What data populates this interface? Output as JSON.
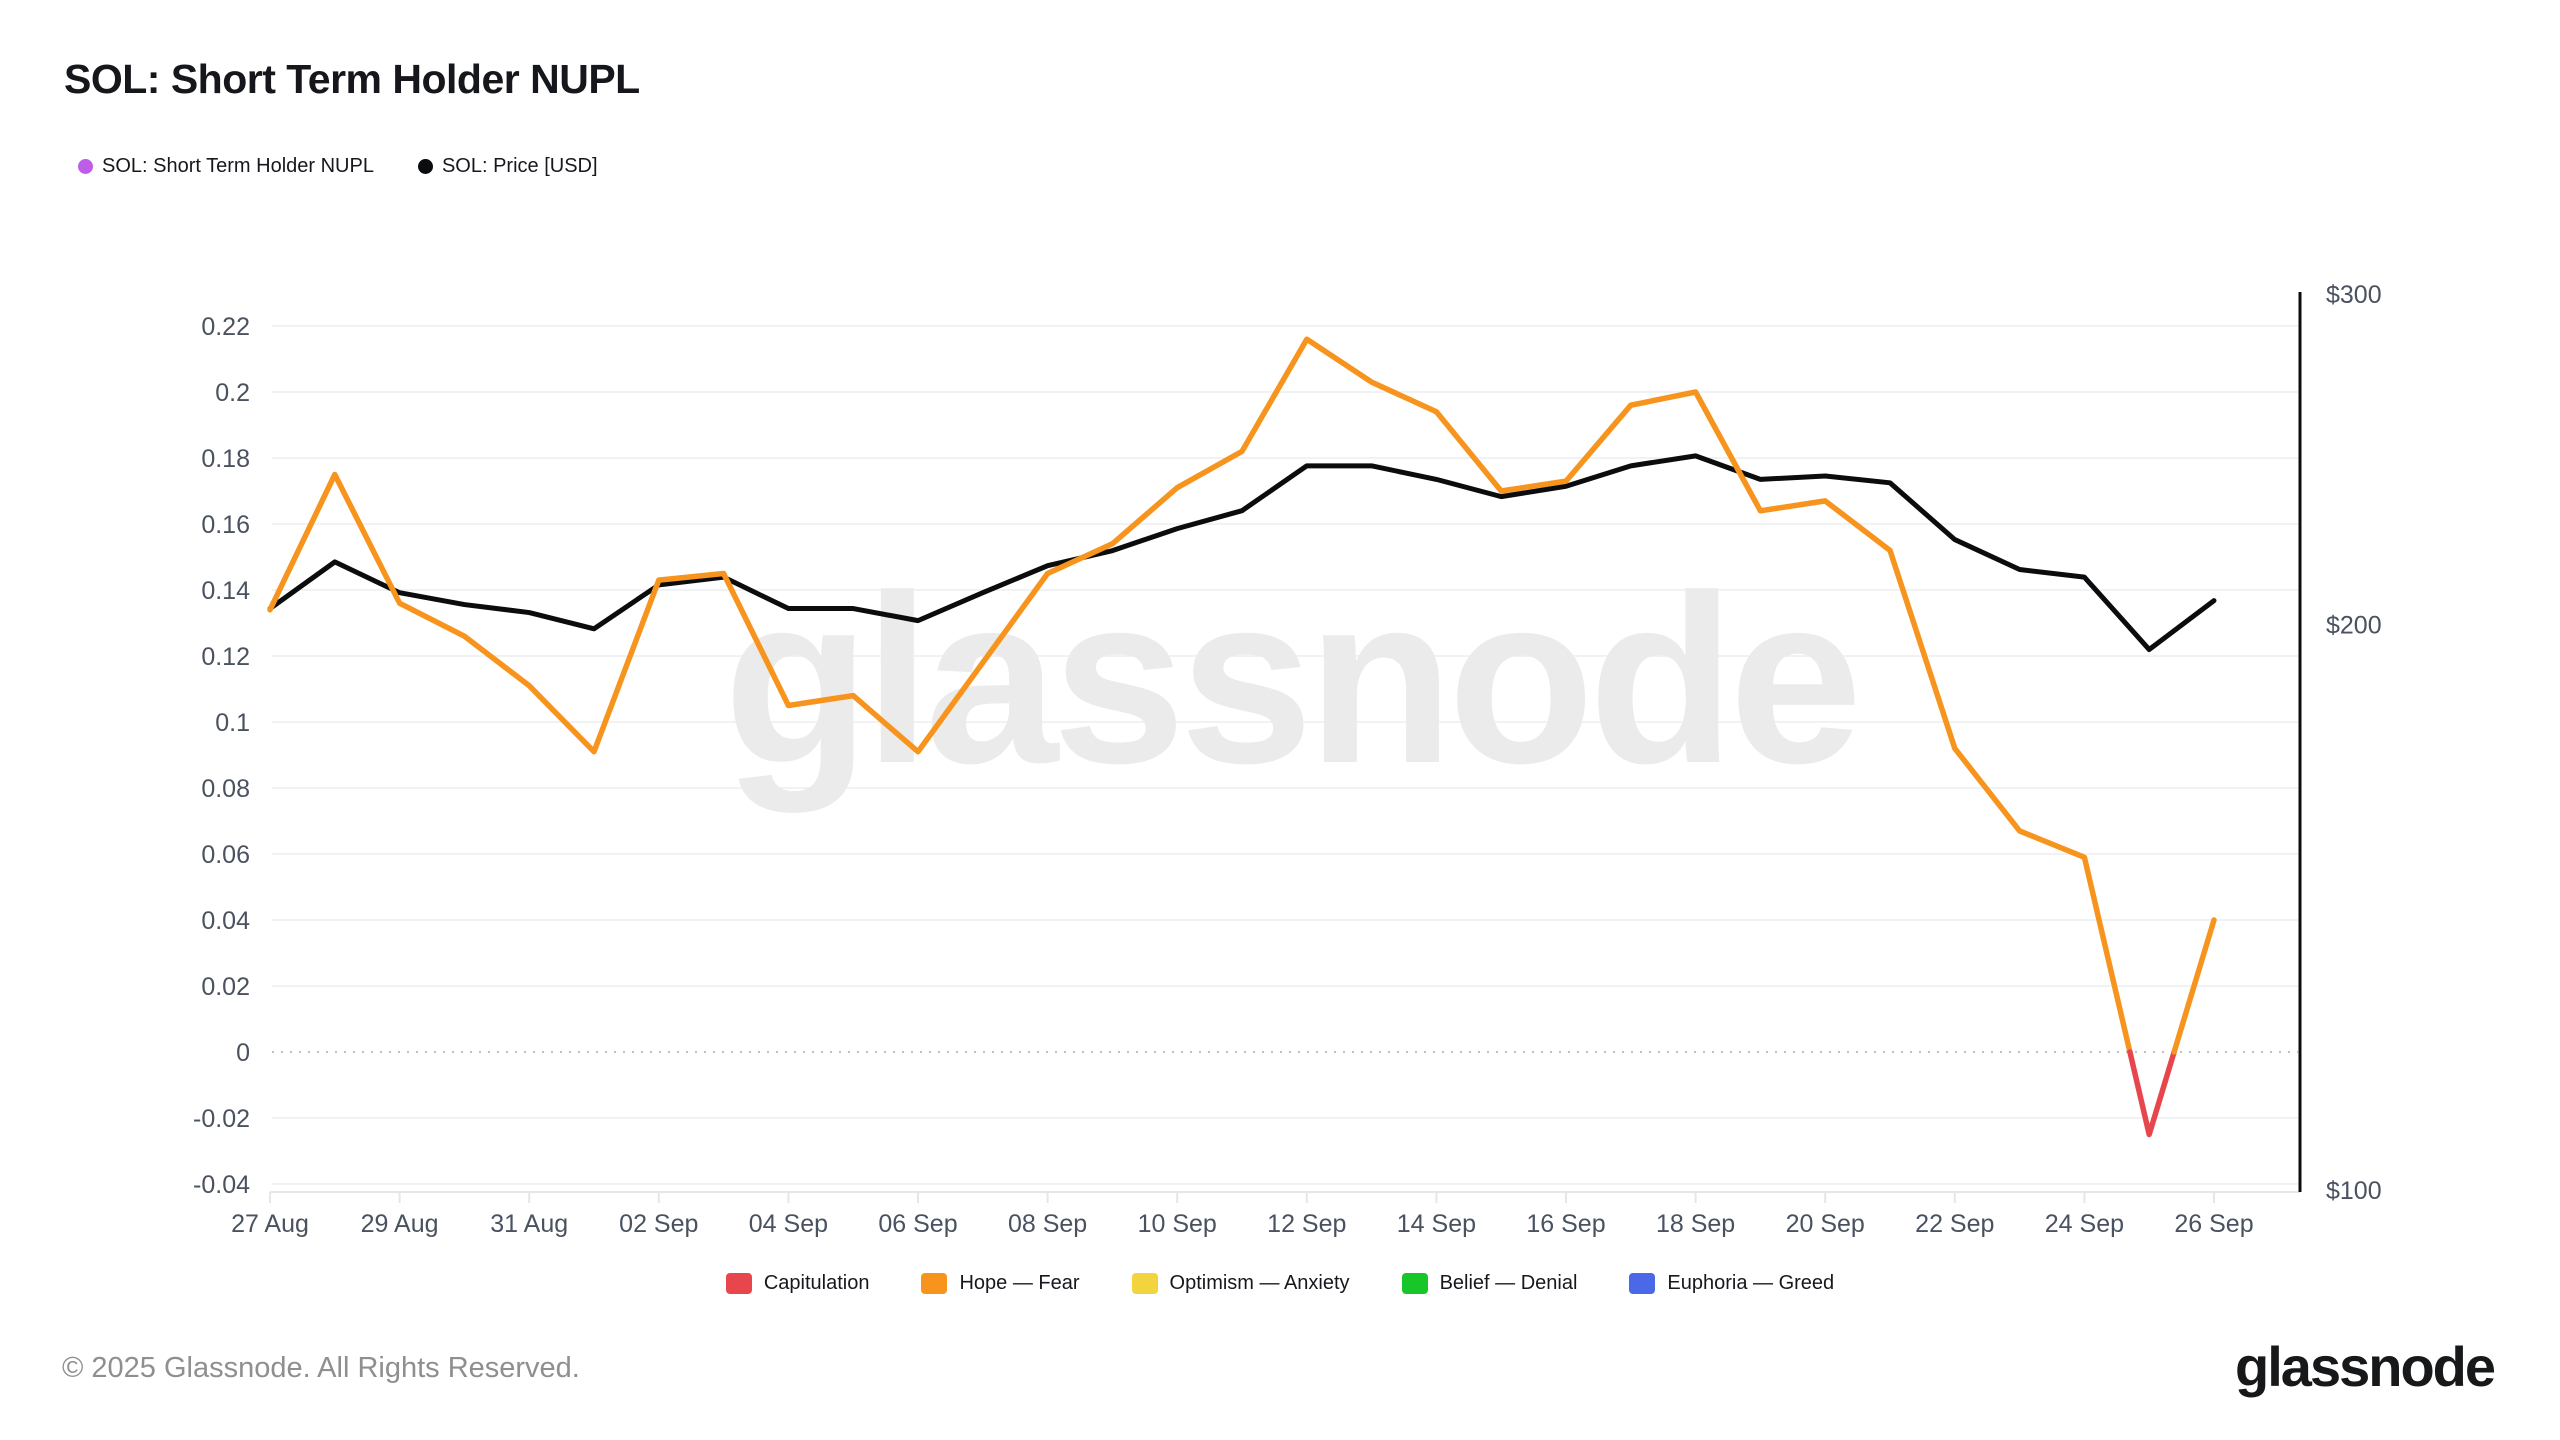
{
  "header": {
    "title": "SOL: Short Term Holder NUPL",
    "series_legend": [
      {
        "label": "SOL: Short Term Holder NUPL",
        "color": "#C05DE8"
      },
      {
        "label": "SOL: Price [USD]",
        "color": "#0B0C0E"
      }
    ]
  },
  "bands_legend": [
    {
      "label": "Capitulation",
      "color": "#E8464D"
    },
    {
      "label": "Hope — Fear",
      "color": "#F7941E"
    },
    {
      "label": "Optimism — Anxiety",
      "color": "#F2D43F"
    },
    {
      "label": "Belief — Denial",
      "color": "#18C629"
    },
    {
      "label": "Euphoria — Greed",
      "color": "#4A68E8"
    }
  ],
  "watermark": "glassnode",
  "footer": {
    "copyright": "© 2025 Glassnode. All Rights Reserved.",
    "logo_text": "glassnode"
  },
  "chart_data": {
    "type": "line",
    "title": "SOL: Short Term Holder NUPL",
    "x_dates": [
      "27 Aug",
      "28 Aug",
      "29 Aug",
      "30 Aug",
      "31 Aug",
      "01 Sep",
      "02 Sep",
      "03 Sep",
      "04 Sep",
      "05 Sep",
      "06 Sep",
      "07 Sep",
      "08 Sep",
      "09 Sep",
      "10 Sep",
      "11 Sep",
      "12 Sep",
      "13 Sep",
      "14 Sep",
      "15 Sep",
      "16 Sep",
      "17 Sep",
      "18 Sep",
      "19 Sep",
      "20 Sep",
      "21 Sep",
      "22 Sep",
      "23 Sep",
      "24 Sep",
      "25 Sep",
      "26 Sep"
    ],
    "x_tick_every": 2,
    "series": [
      {
        "name": "SOL: Short Term Holder NUPL",
        "axis": "left",
        "color": "#F7941E",
        "color_below_zero": "#E8464D",
        "values": [
          0.134,
          0.175,
          0.136,
          0.126,
          0.111,
          0.091,
          0.143,
          0.145,
          0.105,
          0.108,
          0.091,
          0.118,
          0.145,
          0.154,
          0.171,
          0.182,
          0.216,
          0.203,
          0.194,
          0.17,
          0.173,
          0.196,
          0.2,
          0.164,
          0.167,
          0.152,
          0.092,
          0.067,
          0.059,
          -0.025,
          0.04
        ]
      },
      {
        "name": "SOL: Price [USD]",
        "axis": "right",
        "color": "#0B0C0E",
        "values": [
          204,
          216,
          208,
          205,
          203,
          199,
          210,
          212,
          204,
          204,
          201,
          208,
          215,
          219,
          225,
          230,
          243,
          243,
          239,
          234,
          237,
          243,
          246,
          239,
          240,
          238,
          222,
          214,
          212,
          194,
          206
        ]
      }
    ],
    "left_axis": {
      "ticks": [
        0.22,
        0.2,
        0.18,
        0.16,
        0.14,
        0.12,
        0.1,
        0.08,
        0.06,
        0.04,
        0.02,
        0,
        -0.02,
        -0.04
      ],
      "ylim": [
        -0.042,
        0.23
      ],
      "zero_line_style": "dotted"
    },
    "right_axis": {
      "scale": "log",
      "ticks": [
        300,
        200,
        100
      ],
      "tick_labels": [
        "$300",
        "$200",
        "$100"
      ],
      "ylim": [
        100,
        300
      ]
    },
    "grid": true,
    "legend_position": "top"
  }
}
